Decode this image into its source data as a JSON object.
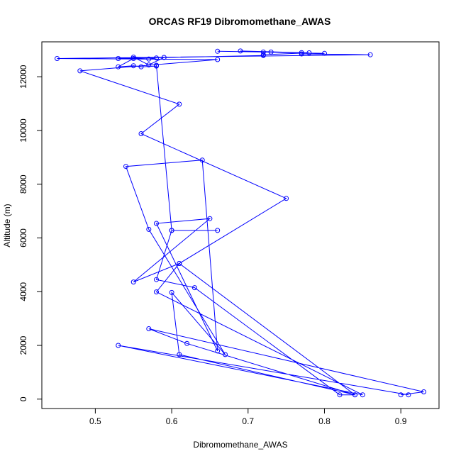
{
  "chart_data": {
    "type": "line",
    "title": "ORCAS RF19 Dibromomethane_AWAS",
    "xlabel": "Dibromomethane_AWAS",
    "ylabel": "Altitude (m)",
    "xlim": [
      0.43,
      0.95
    ],
    "ylim": [
      -350,
      13300
    ],
    "xticks": [
      0.5,
      0.6,
      0.7,
      0.8,
      0.9
    ],
    "yticks": [
      0,
      2000,
      4000,
      6000,
      8000,
      10000,
      12000
    ],
    "xtick_labels": [
      "0.5",
      "0.6",
      "0.7",
      "0.8",
      "0.9"
    ],
    "ytick_labels": [
      "0",
      "2000",
      "4000",
      "6000",
      "8000",
      "10000",
      "12000"
    ],
    "marker": "open-circle",
    "color": "#0000ff",
    "grid": false,
    "series": [
      {
        "x": [
          0.9,
          0.93,
          0.57,
          0.62,
          0.84,
          0.61,
          0.6,
          0.67,
          0.57,
          0.54,
          0.64,
          0.66,
          0.58,
          0.65,
          0.55,
          0.61,
          0.75,
          0.56,
          0.61,
          0.48,
          0.66,
          0.45,
          0.86,
          0.77,
          0.8,
          0.72,
          0.69,
          0.77,
          0.66,
          0.73,
          0.78,
          0.72,
          0.72,
          0.53,
          0.57,
          0.58,
          0.55,
          0.57,
          0.59,
          0.55,
          0.53,
          0.55,
          0.56,
          0.58,
          0.58,
          0.6,
          0.66,
          0.6,
          0.58,
          0.63,
          0.82,
          0.84,
          0.61,
          0.58,
          0.85,
          0.53,
          0.91
        ],
        "y": [
          160,
          270,
          2620,
          2070,
          160,
          1660,
          3970,
          1660,
          6320,
          8660,
          8900,
          1790,
          6540,
          6720,
          4360,
          5050,
          7470,
          9880,
          10980,
          12220,
          12640,
          12680,
          12820,
          12850,
          12870,
          12920,
          12960,
          12900,
          12950,
          12920,
          12890,
          12820,
          12790,
          12680,
          12660,
          12700,
          12730,
          12440,
          12720,
          12680,
          12370,
          12410,
          12370,
          12400,
          12430,
          6280,
          6280,
          6280,
          4450,
          4150,
          160,
          160,
          5050,
          3990,
          160,
          2000,
          160
        ]
      }
    ]
  }
}
